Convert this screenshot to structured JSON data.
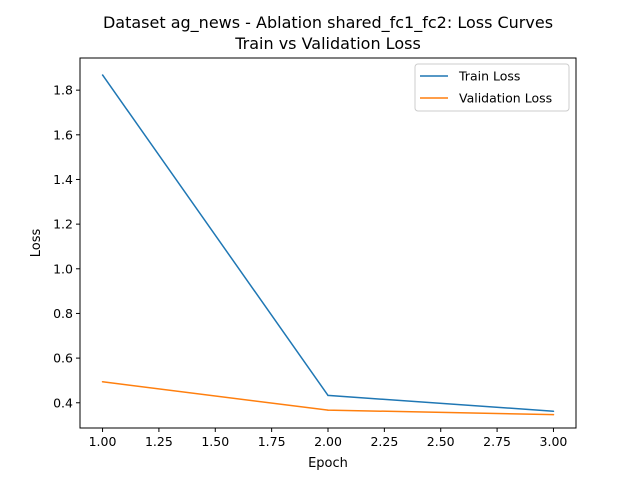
{
  "chart_data": {
    "type": "line",
    "title": "Dataset ag_news - Ablation shared_fc1_fc2: Loss Curves",
    "subtitle": "Train vs Validation Loss",
    "xlabel": "Epoch",
    "ylabel": "Loss",
    "x": [
      1.0,
      2.0,
      3.0
    ],
    "xlim": [
      0.9,
      3.1
    ],
    "ylim": [
      0.287,
      1.944
    ],
    "xticks": [
      1.0,
      1.25,
      1.5,
      1.75,
      2.0,
      2.25,
      2.5,
      2.75,
      3.0
    ],
    "xtick_labels": [
      "1.00",
      "1.25",
      "1.50",
      "1.75",
      "2.00",
      "2.25",
      "2.50",
      "2.75",
      "3.00"
    ],
    "yticks": [
      0.4,
      0.6,
      0.8,
      1.0,
      1.2,
      1.4,
      1.6,
      1.8
    ],
    "ytick_labels": [
      "0.4",
      "0.6",
      "0.8",
      "1.0",
      "1.2",
      "1.4",
      "1.6",
      "1.8"
    ],
    "grid": false,
    "legend_position": "top-right",
    "series": [
      {
        "name": "Train Loss",
        "color": "#1f77b4",
        "values": [
          1.868,
          0.433,
          0.362
        ]
      },
      {
        "name": "Validation Loss",
        "color": "#ff7f0e",
        "values": [
          0.494,
          0.367,
          0.347
        ]
      }
    ]
  }
}
